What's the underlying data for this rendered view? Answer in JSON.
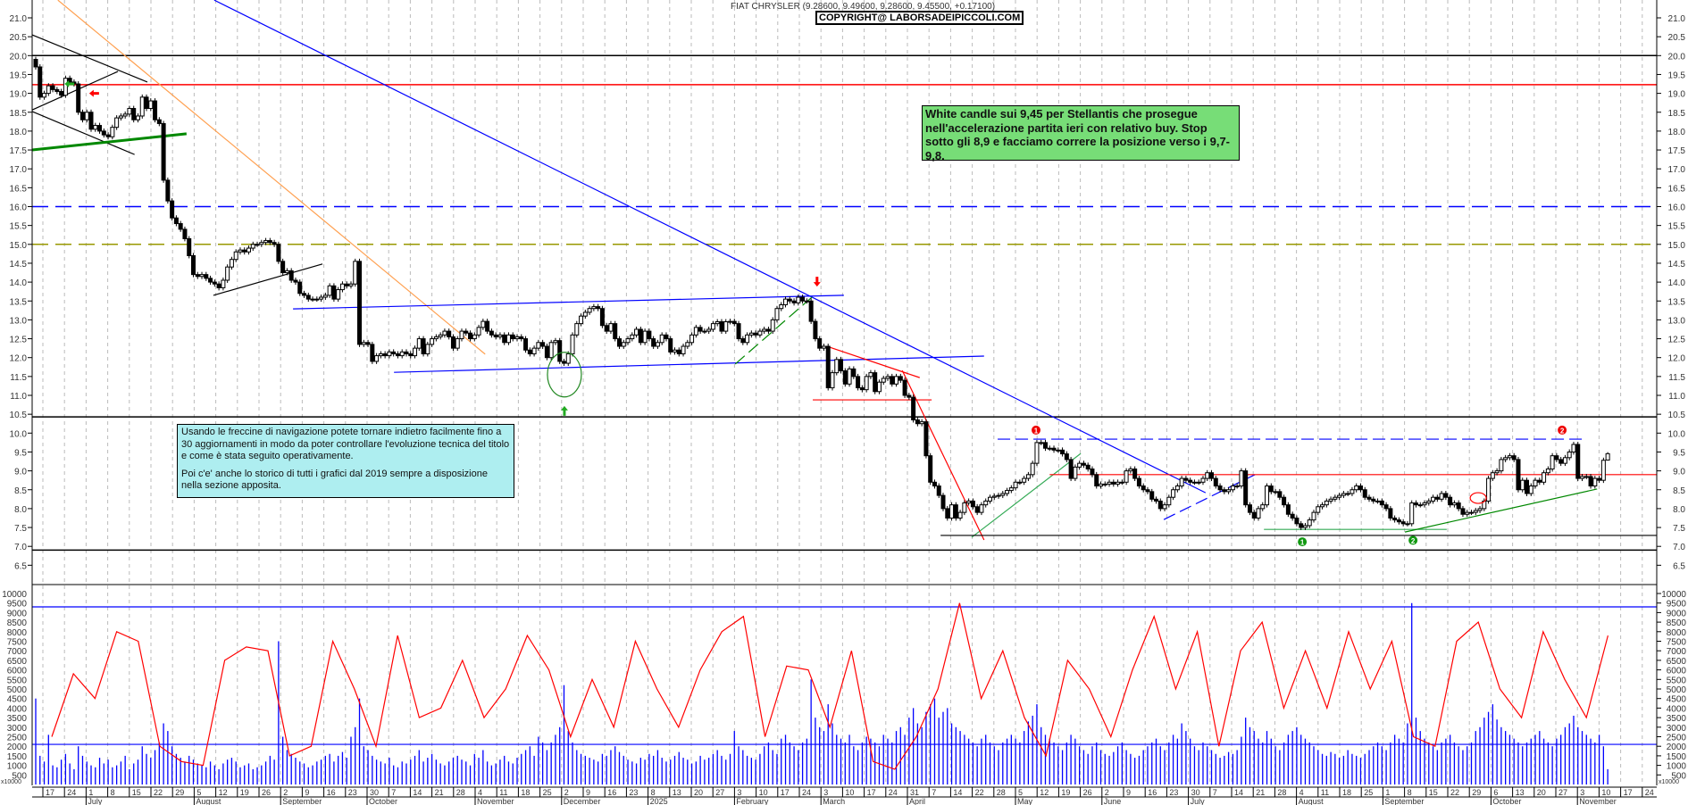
{
  "header": {
    "title": "FIAT CHRYSLER (9.28600, 9.49600, 9.28600, 9.45500, +0.17100)",
    "copyright": "COPYRIGHT@ LABORSADEIPICCOLI.COM"
  },
  "notes": {
    "green": "White candle sui 9,45 per Stellantis che prosegue nell'accelerazione partita ieri con relativo buy. Stop sotto gli 8,9 e facciamo correre la posizione verso i 9,7-9,8.",
    "cyan_p1": "Usando le freccine di navigazione potete tornare indietro facilmente fino a 30 aggiornamenti in modo da poter controllare l'evoluzione tecnica del titolo e come è stata seguito operativamente.",
    "cyan_p2": "Poi c'e' anche lo storico di tutti i grafici dal 2019 sempre a disposizione nella sezione apposita."
  },
  "chart_data": {
    "type": "candlestick",
    "title": "FIAT CHRYSLER",
    "last_candle": {
      "open": 9.286,
      "high": 9.496,
      "low": 9.286,
      "close": 9.455,
      "change": 0.171
    },
    "price_axis": {
      "ylim": [
        6.5,
        21.0
      ],
      "ticks": [
        "21.0",
        "20.5",
        "20.0",
        "19.5",
        "19.0",
        "18.5",
        "18.0",
        "17.5",
        "17.0",
        "16.5",
        "16.0",
        "15.5",
        "15.0",
        "14.5",
        "14.0",
        "13.5",
        "13.0",
        "12.5",
        "12.0",
        "11.5",
        "11.0",
        "10.5",
        "10.0",
        "9.5",
        "9.0",
        "8.5",
        "8.0",
        "7.5",
        "7.0",
        "6.5"
      ]
    },
    "volume_axis": {
      "ylim": [
        0,
        10000
      ],
      "unit_label": "x10000",
      "ticks": [
        "10000",
        "9500",
        "9000",
        "8500",
        "8000",
        "7500",
        "7000",
        "6500",
        "6000",
        "5500",
        "5000",
        "4500",
        "4000",
        "3500",
        "3000",
        "2500",
        "2000",
        "1500",
        "1000",
        "500"
      ]
    },
    "x_axis": {
      "week_ticks": [
        "17",
        "24",
        "1",
        "8",
        "15",
        "22",
        "29",
        "5",
        "12",
        "19",
        "26",
        "2",
        "9",
        "16",
        "23",
        "30",
        "7",
        "14",
        "21",
        "28",
        "4",
        "11",
        "18",
        "25",
        "2",
        "9",
        "16",
        "23",
        "8",
        "13",
        "20",
        "27",
        "3",
        "10",
        "17",
        "24",
        "3",
        "10",
        "17",
        "24",
        "31",
        "7",
        "14",
        "22",
        "28",
        "5",
        "12",
        "19",
        "26",
        "2",
        "9",
        "16",
        "23",
        "30",
        "7",
        "14",
        "21",
        "28",
        "4",
        "11",
        "18",
        "25",
        "1",
        "8",
        "15",
        "22",
        "29",
        "6",
        "13",
        "20",
        "27",
        "3",
        "10",
        "17",
        "24"
      ],
      "months": [
        {
          "label": "July",
          "tick": 2
        },
        {
          "label": "August",
          "tick": 7
        },
        {
          "label": "September",
          "tick": 11
        },
        {
          "label": "October",
          "tick": 15
        },
        {
          "label": "November",
          "tick": 20
        },
        {
          "label": "December",
          "tick": 24
        },
        {
          "label": "2025",
          "tick": 28
        },
        {
          "label": "February",
          "tick": 32
        },
        {
          "label": "March",
          "tick": 36
        },
        {
          "label": "April",
          "tick": 40
        },
        {
          "label": "May",
          "tick": 45
        },
        {
          "label": "June",
          "tick": 49
        },
        {
          "label": "July",
          "tick": 53
        },
        {
          "label": "August",
          "tick": 58
        },
        {
          "label": "September",
          "tick": 62
        },
        {
          "label": "October",
          "tick": 67
        },
        {
          "label": "November",
          "tick": 71
        }
      ]
    },
    "closes": [
      19.7,
      18.9,
      19.0,
      19.2,
      19.1,
      19.05,
      18.95,
      19.4,
      19.3,
      19.25,
      18.5,
      18.3,
      18.5,
      18.05,
      18.15,
      18.0,
      17.9,
      17.85,
      18.1,
      18.35,
      18.4,
      18.45,
      18.6,
      18.3,
      18.4,
      18.9,
      18.6,
      18.8,
      18.3,
      18.2,
      16.7,
      16.15,
      15.7,
      15.55,
      15.4,
      15.15,
      14.7,
      14.2,
      14.15,
      14.2,
      14.1,
      14.0,
      13.95,
      13.85,
      14.05,
      14.4,
      14.6,
      14.8,
      14.85,
      14.8,
      14.9,
      15.0,
      15.0,
      15.05,
      15.1,
      15.05,
      15.0,
      14.55,
      14.25,
      14.3,
      14.05,
      14.0,
      13.7,
      13.65,
      13.55,
      13.55,
      13.55,
      13.6,
      13.65,
      13.9,
      13.55,
      13.8,
      13.95,
      13.9,
      13.95,
      14.55,
      12.35,
      12.4,
      12.35,
      11.9,
      12.05,
      12.1,
      12.05,
      12.15,
      12.1,
      12.05,
      12.15,
      12.1,
      12.05,
      12.25,
      12.5,
      12.1,
      12.35,
      12.5,
      12.55,
      12.6,
      12.7,
      12.55,
      12.25,
      12.5,
      12.7,
      12.65,
      12.5,
      12.6,
      12.8,
      12.96,
      12.7,
      12.6,
      12.55,
      12.6,
      12.4,
      12.6,
      12.5,
      12.55,
      12.5,
      12.2,
      12.1,
      12.25,
      12.4,
      12.3,
      12.0,
      12.4,
      12.45,
      11.9,
      11.85,
      12.1,
      12.6,
      12.9,
      13.1,
      13.2,
      13.3,
      13.35,
      13.3,
      12.85,
      12.7,
      12.9,
      12.5,
      12.3,
      12.4,
      12.5,
      12.6,
      12.75,
      12.4,
      12.7,
      12.5,
      12.3,
      12.4,
      12.6,
      12.5,
      12.15,
      12.2,
      12.1,
      12.3,
      12.4,
      12.6,
      12.8,
      12.7,
      12.7,
      12.75,
      12.9,
      12.95,
      12.7,
      12.95,
      12.96,
      12.9,
      12.5,
      12.4,
      12.6,
      12.65,
      12.6,
      12.7,
      12.75,
      12.7,
      13.0,
      13.3,
      13.4,
      13.55,
      13.5,
      13.45,
      13.6,
      13.5,
      13.5,
      12.96,
      12.5,
      12.25,
      12.3,
      11.2,
      11.6,
      11.95,
      11.65,
      11.3,
      11.7,
      11.5,
      11.2,
      11.15,
      11.5,
      11.6,
      11.1,
      11.35,
      11.45,
      11.5,
      11.3,
      11.5,
      11.4,
      11.0,
      10.95,
      10.35,
      10.25,
      10.3,
      9.4,
      8.7,
      8.6,
      8.35,
      8.0,
      7.75,
      8.1,
      7.75,
      7.9,
      8.15,
      8.2,
      8.05,
      7.9,
      8.1,
      8.2,
      8.3,
      8.33,
      8.35,
      8.4,
      8.48,
      8.55,
      8.7,
      8.7,
      8.8,
      8.9,
      9.2,
      9.75,
      9.75,
      9.6,
      9.6,
      9.55,
      9.55,
      9.45,
      9.3,
      8.8,
      9.1,
      9.2,
      9.15,
      9.05,
      8.9,
      8.6,
      8.65,
      8.65,
      8.7,
      8.65,
      8.7,
      8.7,
      9.0,
      9.05,
      8.8,
      8.6,
      8.5,
      8.45,
      8.25,
      8.2,
      8.0,
      8.1,
      8.3,
      8.5,
      8.6,
      8.8,
      8.75,
      8.7,
      8.7,
      8.7,
      8.8,
      8.95,
      8.8,
      8.6,
      8.5,
      8.45,
      8.5,
      8.6,
      8.6,
      9.0,
      8.1,
      7.9,
      7.75,
      8.0,
      8.1,
      8.6,
      8.45,
      8.45,
      8.3,
      8.1,
      7.85,
      7.75,
      7.6,
      7.5,
      7.55,
      7.7,
      7.9,
      8.05,
      8.1,
      8.2,
      8.25,
      8.3,
      8.35,
      8.4,
      8.4,
      8.5,
      8.6,
      8.5,
      8.3,
      8.25,
      8.2,
      8.2,
      8.1,
      8.0,
      7.75,
      7.7,
      7.65,
      7.6,
      7.6,
      8.15,
      8.1,
      8.1,
      8.15,
      8.2,
      8.3,
      8.25,
      8.4,
      8.3,
      8.1,
      8.15,
      8.0,
      7.85,
      7.9,
      7.9,
      7.95,
      8.0,
      8.2,
      8.8,
      8.95,
      9.0,
      9.3,
      9.35,
      9.4,
      9.3,
      8.5,
      8.75,
      8.4,
      8.6,
      8.75,
      8.7,
      8.95,
      9.05,
      9.4,
      9.3,
      9.2,
      9.35,
      9.5,
      9.7,
      8.8,
      8.85,
      8.85,
      8.6,
      8.8,
      8.75,
      9.28,
      9.455
    ],
    "volume": [
      4500,
      1500,
      1200,
      2600,
      1000,
      900,
      1300,
      1600,
      1100,
      800,
      2000,
      1500,
      1200,
      1000,
      900,
      1400,
      1100,
      1300,
      900,
      1000,
      1200,
      1500,
      800,
      1100,
      1300,
      2000,
      1600,
      1400,
      1800,
      2200,
      3200,
      2800,
      2000,
      1600,
      1400,
      1200,
      1500,
      1300,
      1100,
      1000,
      900,
      1200,
      1000,
      800,
      1100,
      1300,
      1400,
      1200,
      900,
      1000,
      1100,
      800,
      900,
      1000,
      1200,
      1500,
      1300,
      7500,
      2500,
      1800,
      1600,
      1400,
      1200,
      1100,
      900,
      1000,
      1200,
      1300,
      1500,
      1600,
      1200,
      1500,
      1700,
      1400,
      2500,
      3000,
      4500,
      2000,
      1800,
      1500,
      1300,
      1200,
      1100,
      1400,
      1000,
      900,
      1200,
      1100,
      1300,
      1500,
      1800,
      1200,
      1400,
      1600,
      1300,
      1100,
      1000,
      1200,
      1400,
      1500,
      1300,
      1200,
      1000,
      1600,
      1400,
      1800,
      1200,
      1000,
      1100,
      1300,
      1500,
      1200,
      1100,
      1400,
      1600,
      1800,
      2000,
      1500,
      2500,
      2200,
      1800,
      2200,
      2600,
      3000,
      5200,
      2800,
      2200,
      1800,
      1600,
      1500,
      1400,
      1300,
      1200,
      1600,
      1500,
      1800,
      2000,
      1700,
      1500,
      1300,
      1200,
      1100,
      1400,
      1300,
      1600,
      1500,
      1800,
      1400,
      1200,
      1300,
      1500,
      1700,
      1400,
      1300,
      1100,
      1200,
      1500,
      1300,
      1400,
      1600,
      1800,
      1500,
      1300,
      1600,
      2800,
      2000,
      1800,
      1500,
      1400,
      1300,
      1600,
      2000,
      2200,
      1800,
      1600,
      2400,
      2600,
      2200,
      2000,
      1800,
      2200,
      2400,
      5500,
      3500,
      3000,
      2800,
      4200,
      3200,
      2600,
      2400,
      2200,
      2600,
      2000,
      1800,
      2200,
      2500,
      2400,
      2200,
      2000,
      2600,
      2400,
      2200,
      2800,
      3000,
      2600,
      3500,
      4000,
      3200,
      3000,
      3800,
      4200,
      4500,
      3500,
      3800,
      4000,
      3200,
      3000,
      2800,
      2600,
      2400,
      2200,
      2000,
      2400,
      2600,
      2200,
      2000,
      1800,
      2200,
      2400,
      2600,
      2400,
      2200,
      2800,
      3300,
      3600,
      4200,
      3000,
      2600,
      2400,
      2200,
      2000,
      1800,
      2200,
      2600,
      2400,
      2000,
      1800,
      1600,
      2000,
      2200,
      1800,
      1600,
      1500,
      1700,
      2000,
      2200,
      1800,
      1600,
      1400,
      1500,
      1800,
      2000,
      2200,
      2400,
      2000,
      1800,
      2200,
      2600,
      2400,
      3200,
      2800,
      2400,
      2000,
      1800,
      2200,
      2000,
      1800,
      1600,
      1400,
      1500,
      1700,
      1600,
      1800,
      2500,
      3500,
      3000,
      2800,
      2400,
      2200,
      2800,
      2400,
      2000,
      1800,
      2200,
      2600,
      2800,
      3000,
      2600,
      2400,
      2200,
      2000,
      1800,
      1600,
      1500,
      1700,
      1600,
      1400,
      1500,
      1800,
      1600,
      1500,
      1400,
      1600,
      1800,
      2000,
      2200,
      2000,
      1800,
      2200,
      2600,
      2400,
      2200,
      3200,
      9500,
      3500,
      2800,
      2400,
      2200,
      2000,
      1800,
      2200,
      2400,
      2600,
      2200,
      2000,
      1800,
      2000,
      2200,
      2800,
      3000,
      3500,
      3800,
      4200,
      3400,
      3000,
      2800,
      2600,
      2400,
      2200,
      2000,
      2200,
      2400,
      2600,
      2800,
      2400,
      2200,
      2000,
      2400,
      2600,
      3000,
      3200,
      3600,
      3000,
      2800,
      2600,
      2400,
      2200,
      2600,
      2000,
      800
    ],
    "oscillator_weekly": [
      2500,
      5800,
      4500,
      8000,
      7500,
      2000,
      1200,
      1000,
      6500,
      7200,
      7000,
      1500,
      2000,
      7500,
      5000,
      2000,
      7800,
      3500,
      4000,
      6500,
      3500,
      5000,
      7800,
      6000,
      2500,
      5500,
      3000,
      7500,
      5000,
      3000,
      6000,
      8000,
      8800,
      2500,
      6200,
      6000,
      3000,
      7000,
      1200,
      800,
      2500,
      5000,
      9500,
      4500,
      7000,
      3500,
      1500,
      6500,
      5000,
      2500,
      6000,
      8800,
      5000,
      8000,
      2000,
      7000,
      8500,
      4000,
      7000,
      4000,
      8000,
      5000,
      7500,
      2500,
      2000,
      7500,
      8500,
      5000,
      3500,
      8000,
      5500,
      3500,
      7800
    ],
    "horizontal_levels": [
      {
        "price": 20.0,
        "color": "#000000",
        "style": "solid"
      },
      {
        "price": 19.23,
        "color": "#ff0000",
        "style": "solid"
      },
      {
        "price": 16.0,
        "color": "#0000ff",
        "style": "dashed"
      },
      {
        "price": 15.0,
        "color": "#999900",
        "style": "dashed"
      },
      {
        "price": 10.43,
        "color": "#000000",
        "style": "solid"
      },
      {
        "price": 6.9,
        "color": "#000000",
        "style": "solid"
      }
    ],
    "volume_levels": [
      {
        "value": 9300,
        "color": "#0000ff"
      },
      {
        "value": 2100,
        "color": "#0000ff"
      }
    ],
    "trendlines": [
      {
        "from": [
          -1,
          20.55
        ],
        "to": [
          26.2,
          19.3
        ],
        "color": "#000000"
      },
      {
        "from": [
          -1,
          18.56
        ],
        "to": [
          19.3,
          19.58
        ],
        "color": "#000000"
      },
      {
        "from": [
          -1,
          18.52
        ],
        "to": [
          23.2,
          17.38
        ],
        "color": "#000000"
      },
      {
        "from": [
          -1,
          17.5
        ],
        "to": [
          35.4,
          17.93
        ],
        "color": "#008800",
        "width": 3
      },
      {
        "from": [
          5.2,
          21.47
        ],
        "to": [
          105.5,
          12.09
        ],
        "color": "#ffa050"
      },
      {
        "from": [
          41.7,
          13.65
        ],
        "to": [
          67.3,
          14.48
        ],
        "color": "#000000"
      },
      {
        "from": [
          60.4,
          13.29
        ],
        "to": [
          189.7,
          13.65
        ],
        "color": "#0000ff"
      },
      {
        "from": [
          84.1,
          11.61
        ],
        "to": [
          222.6,
          12.04
        ],
        "color": "#0000ff"
      },
      {
        "from": [
          41.9,
          21.47
        ],
        "to": [
          274.6,
          8.42
        ],
        "color": "#0000ff"
      },
      {
        "from": [
          264.8,
          7.71
        ],
        "to": [
          286.2,
          8.9
        ],
        "color": "#0000ff",
        "style": "dashed"
      },
      {
        "from": [
          164.2,
          11.83
        ],
        "to": [
          182.4,
          13.62
        ],
        "color": "#008800",
        "style": "dashed"
      },
      {
        "from": [
          219.7,
          7.24
        ],
        "to": [
          245.3,
          9.46
        ],
        "color": "#33aa55"
      },
      {
        "from": [
          186.2,
          12.28
        ],
        "to": [
          207.5,
          11.47
        ],
        "color": "#ff0000"
      },
      {
        "from": [
          203.4,
          11.66
        ],
        "to": [
          222.6,
          7.17
        ],
        "color": "#ff0000"
      },
      {
        "from": [
          182.4,
          10.88
        ],
        "to": [
          210.3,
          10.88
        ],
        "color": "#ff0000"
      },
      {
        "from": [
          238,
          8.9
        ],
        "to": [
          380.5,
          8.9
        ],
        "color": "#ff0000"
      },
      {
        "from": [
          225.8,
          9.84
        ],
        "to": [
          363.3,
          9.84
        ],
        "color": "#0000ff",
        "style": "dashed"
      },
      {
        "from": [
          288.3,
          7.45
        ],
        "to": [
          331.2,
          7.45
        ],
        "color": "#33aa55"
      },
      {
        "from": [
          321.4,
          7.38
        ],
        "to": [
          366.5,
          8.52
        ],
        "color": "#008800"
      },
      {
        "from": [
          212.4,
          7.29
        ],
        "to": [
          380.5,
          7.29
        ],
        "color": "#000000"
      }
    ],
    "markers": [
      {
        "label": "1",
        "at": [
          234.8,
          10.08
        ],
        "color": "#ee0000"
      },
      {
        "label": "2",
        "at": [
          358.3,
          10.08
        ],
        "color": "#ee0000"
      },
      {
        "label": "1",
        "at": [
          297.3,
          7.12
        ],
        "color": "#119911"
      },
      {
        "label": "2",
        "at": [
          323.3,
          7.16
        ],
        "color": "#119911"
      }
    ],
    "arrows": [
      {
        "direction": "down",
        "at": [
          183.4,
          14.0
        ],
        "color": "#ff0000"
      },
      {
        "direction": "left",
        "at": [
          13.6,
          19.0
        ],
        "color": "#ff0000"
      },
      {
        "direction": "left",
        "at": [
          7.8,
          19.25
        ],
        "color": "#22aa22"
      },
      {
        "direction": "up",
        "at": [
          124.1,
          10.6
        ],
        "color": "#22aa22"
      }
    ],
    "ellipses": [
      {
        "at": [
          124.1,
          11.55
        ],
        "color": "#228822"
      },
      {
        "at": [
          338.6,
          8.28
        ],
        "color": "#ff0000"
      }
    ],
    "colors": {
      "bull": "#ffffff",
      "bear": "#000000",
      "volume": "#0000ff",
      "oscillator": "#ff0000",
      "grid": "#bbbbbb"
    }
  }
}
